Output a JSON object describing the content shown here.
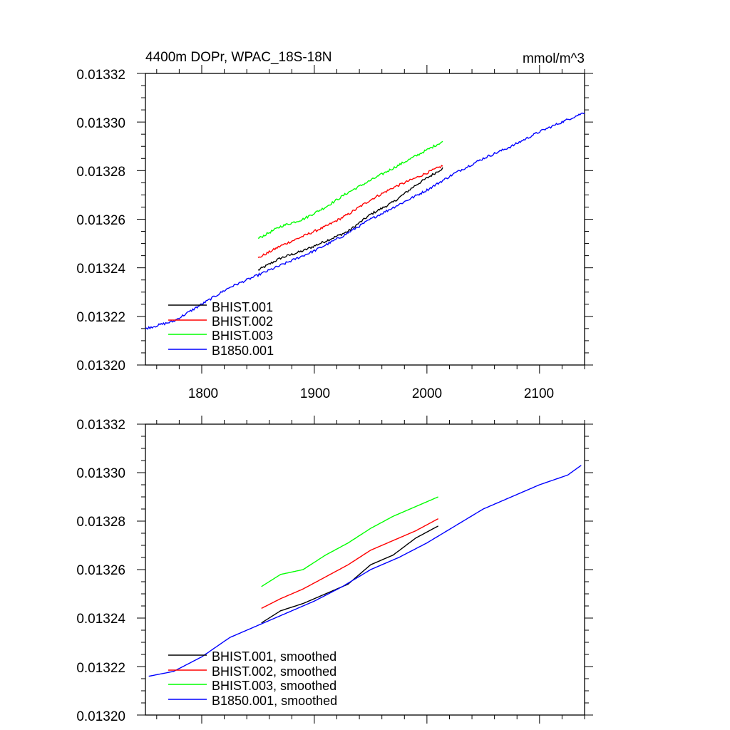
{
  "chart_data": [
    {
      "type": "line",
      "title": "4400m DOPr, WPAC_18S-18N",
      "units": "mmol/m^3",
      "xlabel": "",
      "ylabel": "",
      "xlim": [
        1750,
        2140
      ],
      "ylim": [
        0.0132,
        0.01332
      ],
      "xticks": [
        1800,
        1900,
        2000,
        2100
      ],
      "xtick_labels": [
        "1800",
        "1900",
        "2000",
        "2100"
      ],
      "yticks": [
        0.0132,
        0.01322,
        0.01324,
        0.01326,
        0.01328,
        0.0133,
        0.01332
      ],
      "ytick_labels": [
        "0.01320",
        "0.01322",
        "0.01324",
        "0.01326",
        "0.01328",
        "0.01330",
        "0.01332"
      ],
      "grid": false,
      "legend_position": "bottom-left",
      "series": [
        {
          "name": "BHIST.001",
          "color": "#000000",
          "noise": 5e-07,
          "x": [
            1850,
            1870,
            1890,
            1910,
            1930,
            1950,
            1970,
            1990,
            2014
          ],
          "y": [
            0.013239,
            0.013244,
            0.013247,
            0.013251,
            0.013255,
            0.013262,
            0.013267,
            0.013274,
            0.013281
          ]
        },
        {
          "name": "BHIST.002",
          "color": "#ff0000",
          "noise": 5e-07,
          "x": [
            1850,
            1870,
            1890,
            1910,
            1930,
            1950,
            1970,
            1990,
            2014
          ],
          "y": [
            0.013244,
            0.013249,
            0.013253,
            0.013257,
            0.013262,
            0.013268,
            0.013273,
            0.013277,
            0.013282
          ]
        },
        {
          "name": "BHIST.003",
          "color": "#00ff00",
          "noise": 5e-07,
          "x": [
            1850,
            1870,
            1890,
            1910,
            1930,
            1950,
            1970,
            1990,
            2014
          ],
          "y": [
            0.013252,
            0.013257,
            0.01326,
            0.013265,
            0.013271,
            0.013276,
            0.013281,
            0.013286,
            0.013292
          ]
        },
        {
          "name": "B1850.001",
          "color": "#0000ff",
          "noise": 5e-07,
          "x": [
            1750,
            1775,
            1800,
            1825,
            1850,
            1875,
            1900,
            1925,
            1950,
            1975,
            2000,
            2025,
            2050,
            2075,
            2100,
            2125,
            2140
          ],
          "y": [
            0.013215,
            0.013218,
            0.013225,
            0.013232,
            0.013237,
            0.013242,
            0.013247,
            0.013253,
            0.01326,
            0.013266,
            0.013272,
            0.013279,
            0.013285,
            0.01329,
            0.013296,
            0.013301,
            0.013304
          ]
        }
      ]
    },
    {
      "type": "line",
      "title": "",
      "xlabel": "",
      "ylabel": "",
      "xlim": [
        1750,
        2140
      ],
      "ylim": [
        0.0132,
        0.01332
      ],
      "xticks": [
        1800,
        1900,
        2000,
        2100
      ],
      "yticks": [
        0.0132,
        0.01322,
        0.01324,
        0.01326,
        0.01328,
        0.0133,
        0.01332
      ],
      "ytick_labels": [
        "0.01320",
        "0.01322",
        "0.01324",
        "0.01326",
        "0.01328",
        "0.01330",
        "0.01332"
      ],
      "grid": false,
      "legend_position": "bottom-left",
      "series": [
        {
          "name": "BHIST.001, smoothed",
          "color": "#000000",
          "x": [
            1853,
            1870,
            1890,
            1910,
            1930,
            1950,
            1970,
            1990,
            2010
          ],
          "y": [
            0.013238,
            0.013243,
            0.013246,
            0.01325,
            0.013254,
            0.013262,
            0.013266,
            0.013273,
            0.013278
          ]
        },
        {
          "name": "BHIST.002, smoothed",
          "color": "#ff0000",
          "x": [
            1853,
            1870,
            1890,
            1910,
            1930,
            1950,
            1970,
            1990,
            2010
          ],
          "y": [
            0.013244,
            0.013248,
            0.013252,
            0.013257,
            0.013262,
            0.013268,
            0.013272,
            0.013276,
            0.013281
          ]
        },
        {
          "name": "BHIST.003, smoothed",
          "color": "#00ff00",
          "x": [
            1853,
            1870,
            1890,
            1910,
            1930,
            1950,
            1970,
            1990,
            2010
          ],
          "y": [
            0.013253,
            0.013258,
            0.01326,
            0.013266,
            0.013271,
            0.013277,
            0.013282,
            0.013286,
            0.01329
          ]
        },
        {
          "name": "B1850.001, smoothed",
          "color": "#0000ff",
          "x": [
            1753,
            1775,
            1800,
            1825,
            1850,
            1875,
            1900,
            1925,
            1950,
            1975,
            2000,
            2025,
            2050,
            2075,
            2100,
            2125,
            2137
          ],
          "y": [
            0.013216,
            0.013218,
            0.013224,
            0.013232,
            0.013237,
            0.013242,
            0.013247,
            0.013253,
            0.01326,
            0.013265,
            0.013271,
            0.013278,
            0.013285,
            0.01329,
            0.013295,
            0.013299,
            0.013303
          ]
        }
      ]
    }
  ]
}
